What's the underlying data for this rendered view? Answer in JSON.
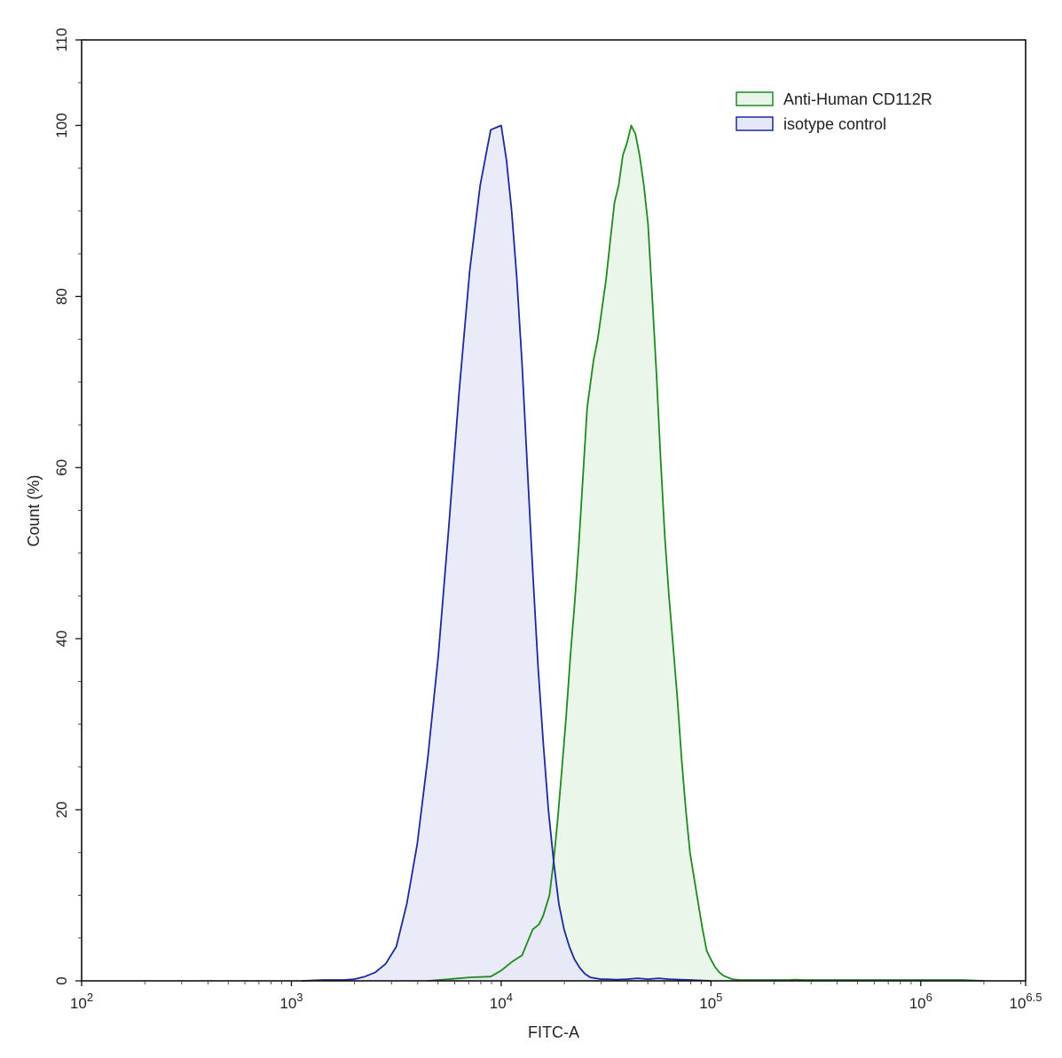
{
  "chart_data": {
    "type": "area",
    "xlabel": "FITC-A",
    "ylabel": "Count  (%)",
    "x_scale": "log10",
    "xlim": [
      100,
      3162277.66
    ],
    "ylim": [
      0,
      110
    ],
    "x_ticks": [
      {
        "value": 100,
        "base": "10",
        "exp": "2"
      },
      {
        "value": 1000,
        "base": "10",
        "exp": "3"
      },
      {
        "value": 10000,
        "base": "10",
        "exp": "4"
      },
      {
        "value": 100000,
        "base": "10",
        "exp": "5"
      },
      {
        "value": 1000000,
        "base": "10",
        "exp": "6"
      },
      {
        "value": 3162277.66,
        "base": "10",
        "exp": "6.5"
      }
    ],
    "y_ticks": [
      "0",
      "20",
      "40",
      "60",
      "80",
      "100",
      "110"
    ],
    "legend_position": "top-right",
    "series": [
      {
        "name": "Anti-Human CD112R",
        "stroke": "#1e8a1e",
        "fill": "#e8f5e8",
        "x": [
          4467,
          5623,
          7079,
          8913,
          10000,
          11220,
          12589,
          13490,
          14125,
          15136,
          15849,
          16982,
          17783,
          18621,
          19498,
          20417,
          21380,
          22387,
          23442,
          24547,
          25704,
          27542,
          28840,
          30200,
          31623,
          33113,
          34674,
          36308,
          38019,
          39811,
          41687,
          43652,
          45709,
          47863,
          50119,
          52481,
          54954,
          57544,
          60256,
          63096,
          66069,
          69183,
          72444,
          75858,
          79433,
          83176,
          87096,
          91201,
          95499,
          100000,
          104713,
          109648,
          114815,
          120226,
          125893,
          131826,
          138038,
          144544,
          151356,
          158489,
          165959,
          177828,
          190546,
          204174,
          218776,
          234423,
          251189,
          281838,
          316228,
          354813,
          398107,
          501187,
          630957,
          794328,
          1000000,
          1258925,
          1584893,
          1995262
        ],
        "y": [
          0,
          0.2,
          0.4,
          0.5,
          1.2,
          2.2,
          3.0,
          4.8,
          6.0,
          6.6,
          7.6,
          10.0,
          14.0,
          19.0,
          25.0,
          31.0,
          38.0,
          44.0,
          51.0,
          59.0,
          67.0,
          72.5,
          75.0,
          78.5,
          82.0,
          86.5,
          91.0,
          93.0,
          96.5,
          98.0,
          100,
          99.0,
          96.5,
          93.0,
          88.5,
          80.0,
          71.0,
          61.0,
          52.0,
          45.0,
          39.0,
          33.0,
          26.0,
          20.0,
          15.0,
          12.0,
          9.0,
          6.0,
          3.5,
          2.5,
          1.6,
          1.0,
          0.6,
          0.4,
          0.2,
          0.15,
          0.1,
          0.1,
          0.1,
          0.1,
          0.1,
          0.1,
          0.1,
          0.1,
          0.1,
          0.1,
          0.15,
          0.1,
          0.1,
          0.1,
          0.1,
          0.1,
          0.1,
          0.1,
          0.1,
          0.1,
          0.1,
          0
        ]
      },
      {
        "name": "isotype control",
        "stroke": "#1a2a9a",
        "fill": "#e6e8f8",
        "x": [
          1122,
          1259,
          1413,
          1585,
          1778,
          1995,
          2239,
          2512,
          2818,
          3162,
          3548,
          3981,
          4467,
          5012,
          5623,
          6310,
          7079,
          7943,
          8913,
          10000,
          10593,
          11220,
          11885,
          12589,
          13335,
          14125,
          14962,
          15849,
          16788,
          17783,
          18836,
          19953,
          21135,
          22387,
          23714,
          25119,
          26607,
          28184,
          29854,
          31623,
          35481,
          39811,
          44668,
          50119,
          56234,
          63096,
          70795,
          79433,
          89125,
          100000
        ],
        "y": [
          0,
          0.05,
          0.1,
          0.1,
          0.1,
          0.2,
          0.5,
          1.0,
          2.0,
          4.0,
          9.0,
          16.0,
          26.0,
          38.0,
          53.0,
          69.0,
          83.0,
          93.0,
          99.5,
          100,
          96.0,
          90.0,
          82.0,
          72.0,
          60.0,
          48.0,
          37.0,
          28.0,
          20.0,
          14.0,
          9.0,
          6.0,
          4.0,
          2.5,
          1.5,
          0.8,
          0.4,
          0.3,
          0.2,
          0.2,
          0.15,
          0.2,
          0.3,
          0.2,
          0.3,
          0.2,
          0.15,
          0.1,
          0.05,
          0
        ]
      }
    ]
  }
}
